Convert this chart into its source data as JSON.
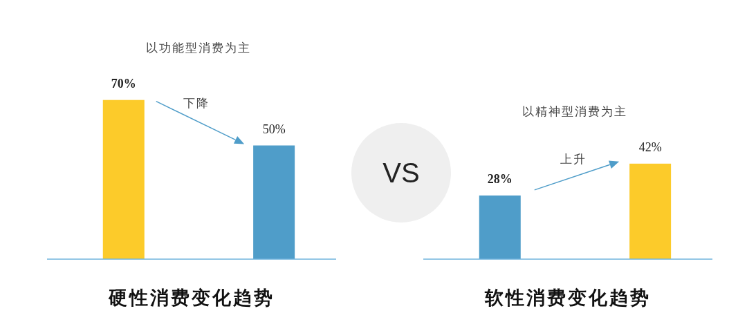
{
  "chart_data": [
    {
      "type": "bar",
      "title": "硬性消费变化趋势",
      "categories": [
        null,
        null
      ],
      "values": [
        70,
        50
      ],
      "colors": [
        "#fccb2a",
        "#4f9dc9"
      ],
      "value_labels": [
        "70%",
        "50%"
      ],
      "annotations": [
        "以功能型消费为主",
        "下降"
      ]
    },
    {
      "type": "other",
      "title": "VS"
    },
    {
      "type": "bar",
      "title": "软性消费变化趋势",
      "categories": [
        null,
        null
      ],
      "values": [
        28,
        42
      ],
      "colors": [
        "#4f9dc9",
        "#fccb2a"
      ],
      "value_labels": [
        "28%",
        "42%"
      ],
      "annotations": [
        "以精神型消费为主",
        "上升"
      ]
    }
  ]
}
